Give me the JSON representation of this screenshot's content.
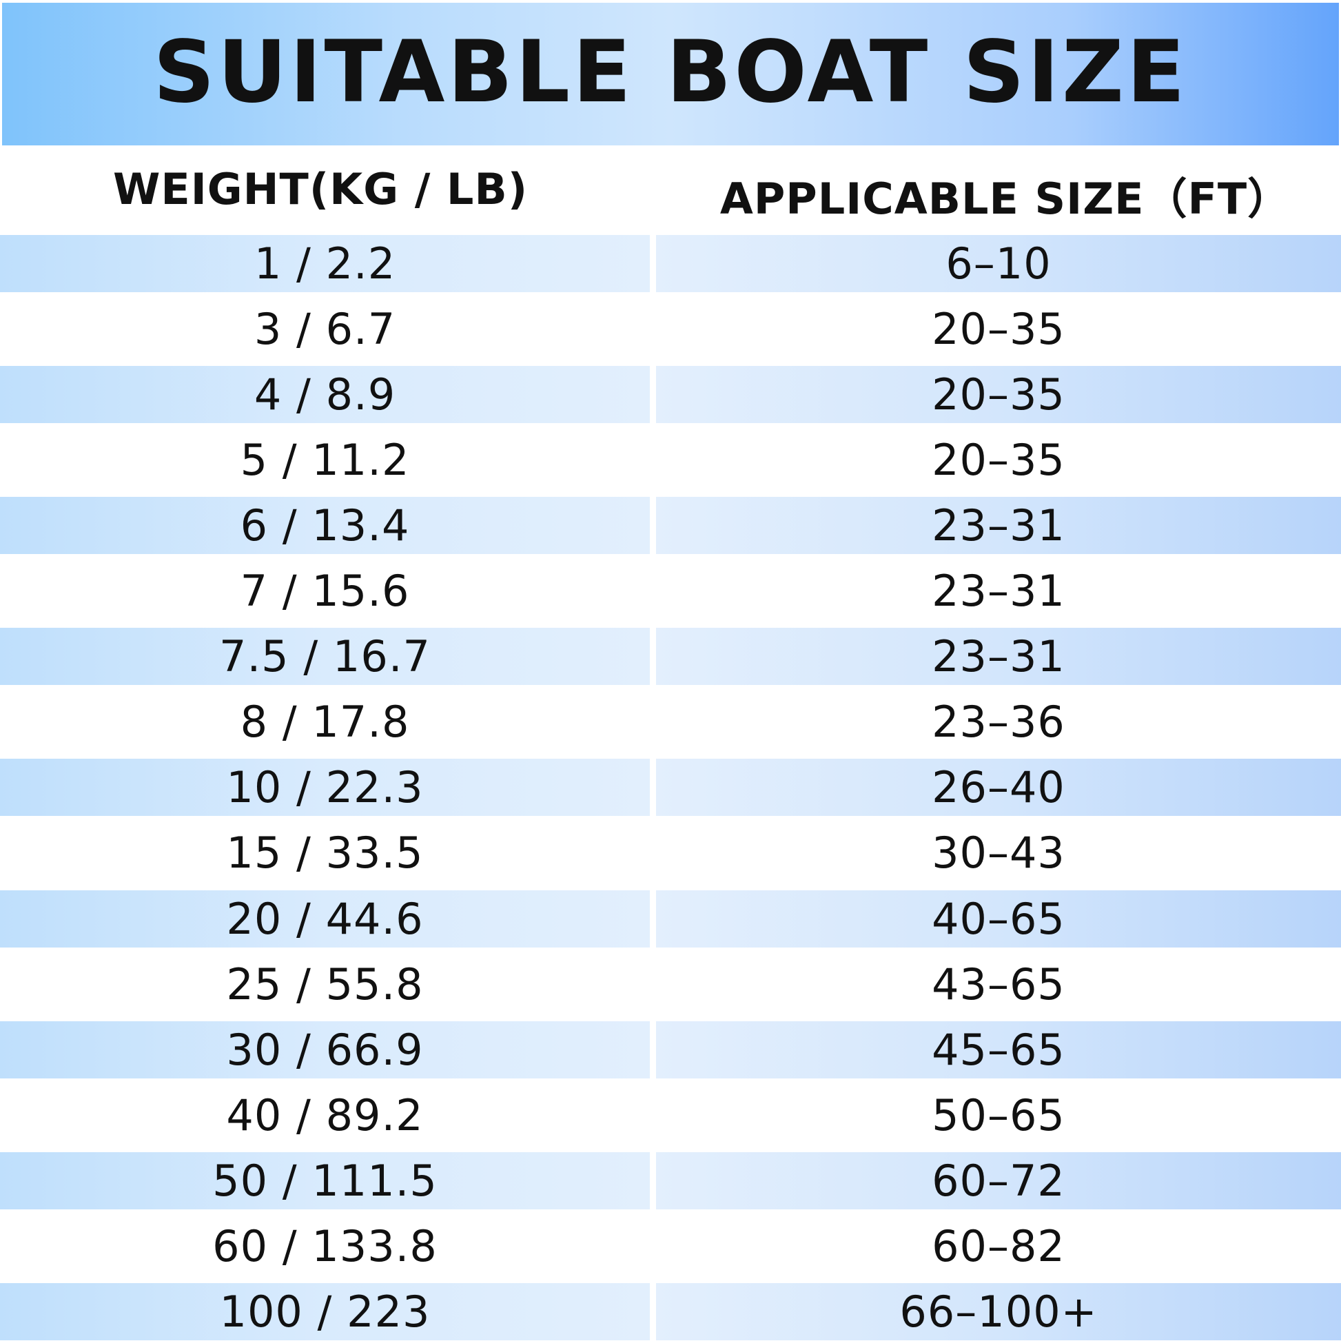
{
  "header": {
    "title": "SUITABLE BOAT SIZE"
  },
  "table": {
    "columns": [
      "WEIGHT(KG / LB)",
      "APPLICABLE SIZE（FT）"
    ],
    "rows": [
      [
        "1 / 2.2",
        "6–10"
      ],
      [
        "3 / 6.7",
        "20–35"
      ],
      [
        "4 / 8.9",
        "20–35"
      ],
      [
        "5 / 11.2",
        "20–35"
      ],
      [
        "6 / 13.4",
        "23–31"
      ],
      [
        "7 / 15.6",
        "23–31"
      ],
      [
        "7.5 / 16.7",
        "23–31"
      ],
      [
        "8 / 17.8",
        "23–36"
      ],
      [
        "10 / 22.3",
        "26–40"
      ],
      [
        "15 / 33.5",
        "30–43"
      ],
      [
        "20 / 44.6",
        "40–65"
      ],
      [
        "25 / 55.8",
        "43–65"
      ],
      [
        "30 / 66.9",
        "45–65"
      ],
      [
        "40 / 89.2",
        "50–65"
      ],
      [
        "50 / 111.5",
        "60–72"
      ],
      [
        "60 / 133.8",
        "60–82"
      ],
      [
        "100 / 223",
        "66–100+"
      ]
    ]
  }
}
